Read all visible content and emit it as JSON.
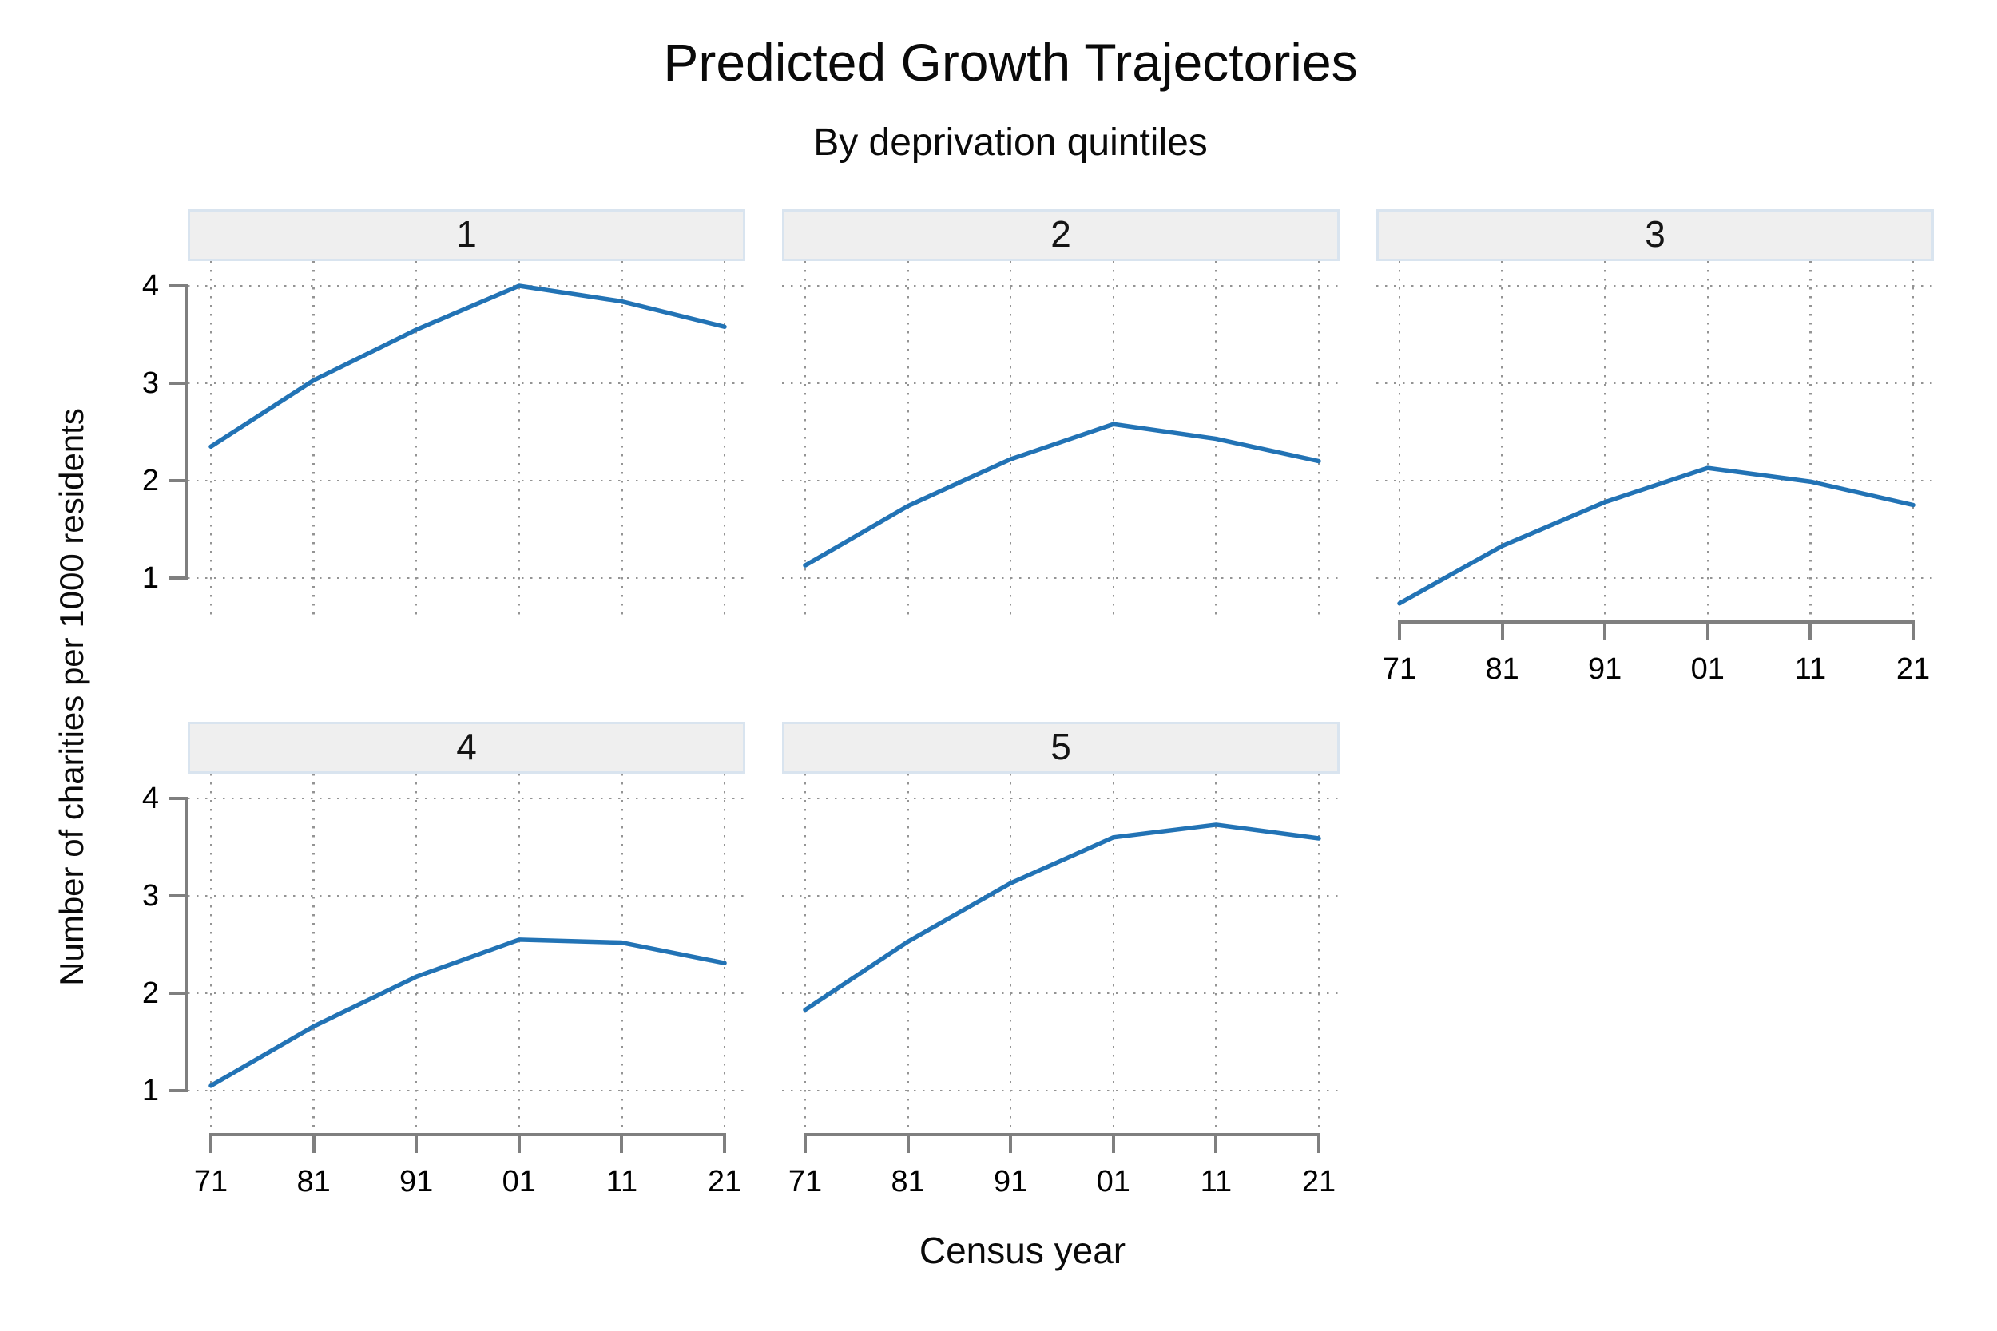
{
  "title": "Predicted Growth Trajectories",
  "subtitle": "By deprivation quintiles",
  "chart_data": {
    "type": "line",
    "layout": "facet-grid 2 rows x 3 cols, panels 1-3 top row, 4-5 bottom row, bottom-right cell empty",
    "title": "Predicted Growth Trajectories",
    "subtitle": "By deprivation quintiles",
    "xlabel": "Census year",
    "ylabel": "Number of charities per 1000 residents",
    "x_tick_labels": [
      "71",
      "81",
      "91",
      "01",
      "11",
      "21"
    ],
    "y_ticks": [
      1,
      2,
      3,
      4
    ],
    "ylim": [
      0.57,
      4.33
    ],
    "grid": "dotted gray major gridlines, both axes",
    "legend": "none",
    "line_color": "#2273b5",
    "axis_color": "#7f7f7f",
    "strip_fill": "#efefef",
    "strip_border": "#d9e4ef",
    "panels": [
      {
        "label": "1",
        "values": [
          2.35,
          3.03,
          3.55,
          4.0,
          3.84,
          3.58
        ]
      },
      {
        "label": "2",
        "values": [
          1.13,
          1.74,
          2.22,
          2.58,
          2.43,
          2.2
        ]
      },
      {
        "label": "3",
        "values": [
          0.74,
          1.33,
          1.78,
          2.13,
          1.99,
          1.75
        ]
      },
      {
        "label": "4",
        "values": [
          1.05,
          1.66,
          2.17,
          2.55,
          2.52,
          2.31
        ]
      },
      {
        "label": "5",
        "values": [
          1.83,
          2.53,
          3.13,
          3.6,
          3.73,
          3.59
        ]
      }
    ]
  }
}
